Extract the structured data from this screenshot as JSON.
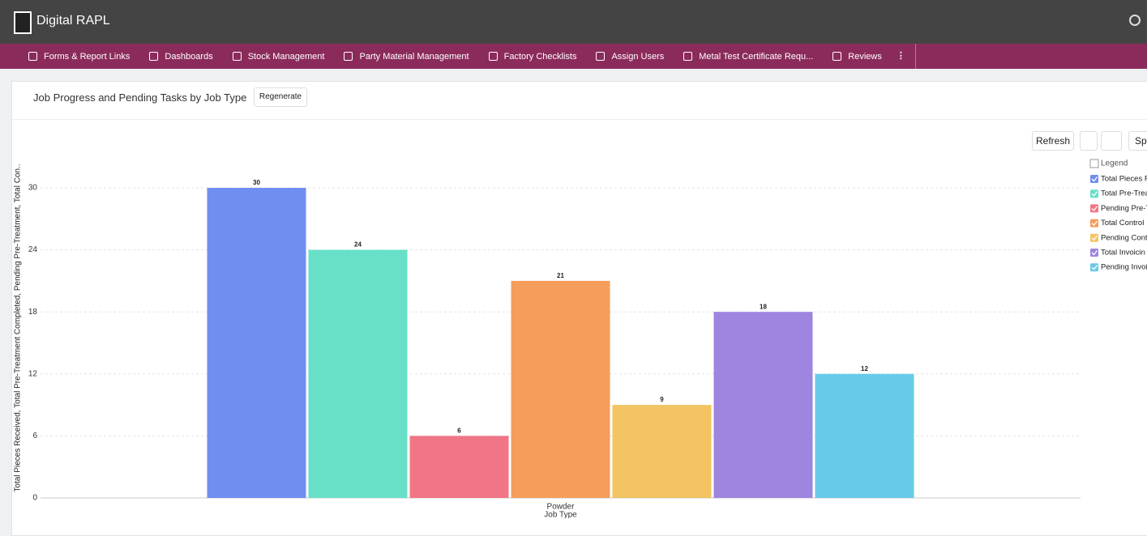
{
  "header": {
    "title": "Digital RAPL"
  },
  "nav": [
    "Forms & Report Links",
    "Dashboards",
    "Stock Management",
    "Party Material Management",
    "Factory Checklists",
    "Assign Users",
    "Metal Test Certificate Requ...",
    "Reviews"
  ],
  "panel": {
    "title": "Job Progress and Pending Tasks by Job Type",
    "regenerate": "Regenerate",
    "refresh": "Refresh",
    "split": "Spli"
  },
  "chart_data": {
    "type": "bar",
    "y_label": "Total Pieces Received, Total Pre-Treatment Completed, Pending Pre-Treatment, Total Con..",
    "x_label": "Job Type",
    "legend_title": "Legend",
    "categories": [
      "Powder"
    ],
    "series": [
      {
        "name": "Total Pieces R",
        "color": "#6f8ef0",
        "values": [
          30
        ]
      },
      {
        "name": "Total Pre-Trea",
        "color": "#68e0c8",
        "values": [
          24
        ]
      },
      {
        "name": "Pending Pre-T",
        "color": "#f07585",
        "values": [
          6
        ]
      },
      {
        "name": "Total Control",
        "color": "#f59d5a",
        "values": [
          21
        ]
      },
      {
        "name": "Pending Cont",
        "color": "#f2c462",
        "values": [
          9
        ]
      },
      {
        "name": "Total Invoicin",
        "color": "#9e85df",
        "values": [
          18
        ]
      },
      {
        "name": "Pending Invoi",
        "color": "#67cbe8",
        "values": [
          12
        ]
      }
    ],
    "ylim": [
      0,
      30
    ],
    "yticks": [
      0,
      6,
      12,
      18,
      24,
      30
    ],
    "grid": true
  }
}
